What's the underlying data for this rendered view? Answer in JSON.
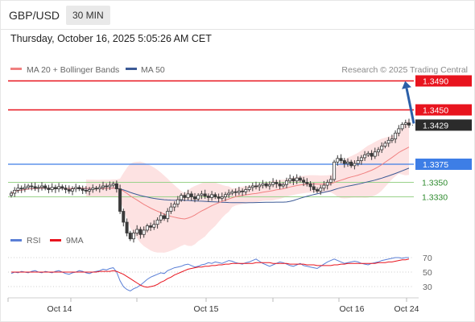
{
  "header": {
    "pair": "GBP/USD",
    "timeframe": "30 MIN",
    "datetime": "Thursday, October 16, 2025 5:05:26 AM CET"
  },
  "legend": {
    "ma20_label": "MA 20 + Bollinger Bands",
    "ma50_label": "MA 50",
    "rsi_label": "RSI",
    "ma9_label": "9MA"
  },
  "copyright": "Research © 2025 Trading Central",
  "colors": {
    "candle": "#3a3a3a",
    "ma20": "#f08080",
    "bollinger_fill": "#fde2e2",
    "ma50": "#3c5a96",
    "resistance": "#e8141e",
    "support_main": "#3d7ee6",
    "support_minor": "#9ad28a",
    "support_label_text": "#2e8b2e",
    "current_label_bg": "#2b2b2b",
    "arrow": "#2b5fa8",
    "rsi": "#5a7fd6",
    "rsi_ma9": "#e8141e"
  },
  "chart_data": [
    {
      "type": "candlestick",
      "title": "",
      "ylim": [
        1.3285,
        1.3495
      ],
      "x_tick_labels": [
        "Oct 14",
        "Oct 15",
        "Oct 16",
        "Oct 24"
      ],
      "levels": [
        {
          "value": 1.349,
          "label": "1.3490",
          "kind": "resistance"
        },
        {
          "value": 1.345,
          "label": "1.3450",
          "kind": "resistance"
        },
        {
          "value": 1.3429,
          "label": "1.3429",
          "kind": "current"
        },
        {
          "value": 1.3375,
          "label": "1.3375",
          "kind": "support"
        },
        {
          "value": 1.335,
          "label": "1.3350",
          "kind": "minor-support"
        },
        {
          "value": 1.333,
          "label": "1.3330",
          "kind": "minor-support"
        }
      ],
      "close": [
        1.3335,
        1.3339,
        1.3342,
        1.3341,
        1.3343,
        1.3345,
        1.3344,
        1.3342,
        1.3343,
        1.3345,
        1.3342,
        1.334,
        1.3343,
        1.3341,
        1.3344,
        1.3342,
        1.334,
        1.3338,
        1.3341,
        1.3343,
        1.3341,
        1.3339,
        1.3338,
        1.334,
        1.3342,
        1.3341,
        1.3343,
        1.3345,
        1.3344,
        1.3346,
        1.3348,
        1.3341,
        1.331,
        1.3295,
        1.328,
        1.3272,
        1.328,
        1.3285,
        1.3278,
        1.3284,
        1.329,
        1.3288,
        1.3292,
        1.3298,
        1.3304,
        1.33,
        1.331,
        1.3316,
        1.332,
        1.3326,
        1.3332,
        1.3329,
        1.3334,
        1.333,
        1.3327,
        1.3332,
        1.3334,
        1.3331,
        1.3329,
        1.3333,
        1.333,
        1.3328,
        1.333,
        1.3333,
        1.3335,
        1.3337,
        1.3336,
        1.3338,
        1.3337,
        1.334,
        1.3343,
        1.3345,
        1.3344,
        1.3346,
        1.3348,
        1.3345,
        1.3347,
        1.335,
        1.3348,
        1.3345,
        1.3347,
        1.3352,
        1.3355,
        1.3352,
        1.3356,
        1.3353,
        1.335,
        1.3348,
        1.3344,
        1.334,
        1.3338,
        1.3342,
        1.3346,
        1.335,
        1.3354,
        1.3378,
        1.3383,
        1.338,
        1.3376,
        1.3378,
        1.3373,
        1.3376,
        1.338,
        1.3384,
        1.3388,
        1.339,
        1.3386,
        1.3392,
        1.3395,
        1.34,
        1.3404,
        1.3408,
        1.341,
        1.3418,
        1.3424,
        1.343,
        1.3432,
        1.3429
      ]
    },
    {
      "type": "line",
      "title": "",
      "ylim": [
        20,
        80
      ],
      "y_tick_labels": [
        "70",
        "50",
        "30"
      ],
      "series": [
        {
          "name": "RSI",
          "values": [
            48,
            50,
            49,
            51,
            50,
            49,
            51,
            52,
            50,
            49,
            51,
            50,
            49,
            51,
            52,
            50,
            48,
            47,
            49,
            50,
            52,
            51,
            49,
            48,
            50,
            51,
            52,
            54,
            53,
            55,
            56,
            50,
            38,
            30,
            26,
            24,
            27,
            29,
            32,
            36,
            40,
            43,
            45,
            47,
            49,
            48,
            52,
            54,
            56,
            57,
            58,
            60,
            61,
            59,
            57,
            58,
            60,
            61,
            63,
            62,
            64,
            63,
            62,
            64,
            66,
            65,
            63,
            62,
            61,
            63,
            64,
            66,
            68,
            65,
            62,
            60,
            58,
            60,
            62,
            64,
            63,
            61,
            59,
            58,
            60,
            62,
            59,
            58,
            57,
            56,
            55,
            58,
            61,
            64,
            66,
            68,
            66,
            64,
            62,
            63,
            64,
            65,
            64,
            62,
            61,
            60,
            62,
            63,
            64,
            66,
            67,
            68,
            69,
            70,
            70,
            69,
            70,
            70
          ]
        },
        {
          "name": "9MA",
          "values": [
            50,
            50,
            50,
            50,
            50,
            50,
            50,
            50,
            50,
            50,
            50,
            50,
            50,
            50,
            50,
            50,
            50,
            50,
            50,
            50,
            50,
            50,
            50,
            50,
            50,
            50,
            51,
            51,
            51,
            51,
            52,
            51,
            49,
            47,
            44,
            41,
            38,
            35,
            32,
            30,
            29,
            30,
            31,
            33,
            36,
            38,
            41,
            43,
            46,
            48,
            50,
            52,
            54,
            55,
            56,
            57,
            57,
            58,
            58,
            59,
            59,
            60,
            60,
            61,
            61,
            62,
            62,
            62,
            62,
            62,
            62,
            62,
            63,
            63,
            63,
            63,
            63,
            62,
            62,
            62,
            62,
            62,
            61,
            61,
            61,
            61,
            61,
            60,
            60,
            60,
            59,
            59,
            59,
            59,
            59,
            60,
            60,
            61,
            61,
            62,
            62,
            62,
            62,
            62,
            62,
            62,
            62,
            62,
            63,
            63,
            63,
            64,
            64,
            65,
            66,
            67,
            67,
            68
          ]
        }
      ]
    }
  ]
}
